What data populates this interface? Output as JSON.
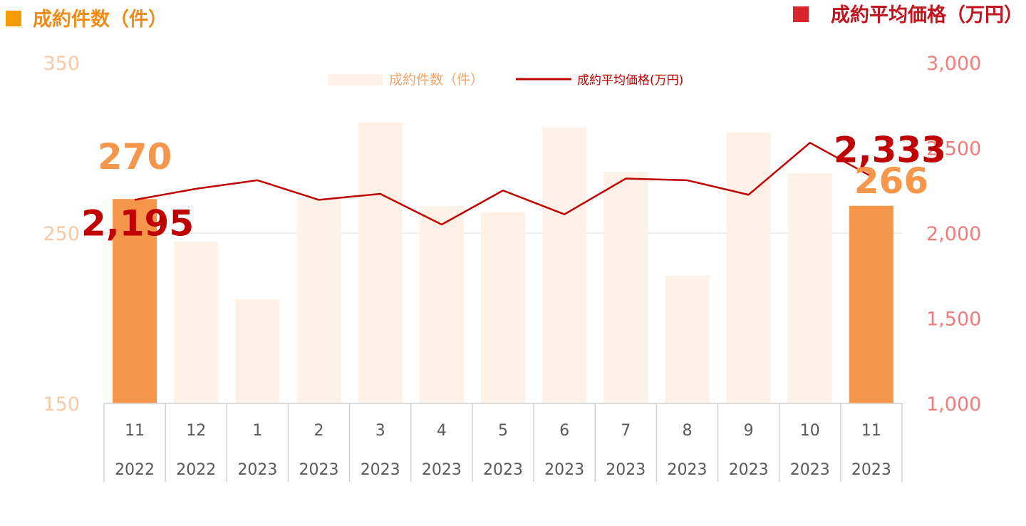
{
  "header": {
    "left_title": "成約件数（件）",
    "right_title": "成約平均価格（万円）"
  },
  "colors": {
    "bar_highlight": "#F5964A",
    "bar_faded": "#FDF1E8",
    "line": "#C00000",
    "left_axis_text": "#F8C9A4",
    "right_axis_text": "#F07C7C",
    "left_title_square": "#F59A00",
    "right_title_square": "#D9262E",
    "left_title_text": "#F08C16",
    "right_title_text": "#C0141E",
    "grid": "#DDDDDD",
    "category_text": "#595959",
    "legend_bar_text": "#F2A46A",
    "legend_line_text": "#C00000",
    "value_label_bar": "#F5964A",
    "value_label_line": "#C00000"
  },
  "chart_data": {
    "type": "bar",
    "categories": [
      {
        "month": "11",
        "year": "2022"
      },
      {
        "month": "12",
        "year": "2022"
      },
      {
        "month": "1",
        "year": "2023"
      },
      {
        "month": "2",
        "year": "2023"
      },
      {
        "month": "3",
        "year": "2023"
      },
      {
        "month": "4",
        "year": "2023"
      },
      {
        "month": "5",
        "year": "2023"
      },
      {
        "month": "6",
        "year": "2023"
      },
      {
        "month": "7",
        "year": "2023"
      },
      {
        "month": "8",
        "year": "2023"
      },
      {
        "month": "9",
        "year": "2023"
      },
      {
        "month": "10",
        "year": "2023"
      },
      {
        "month": "11",
        "year": "2023"
      }
    ],
    "series": [
      {
        "name": "成約件数（件）",
        "type": "bar",
        "axis": "left",
        "values": [
          270,
          245,
          211,
          270,
          315,
          266,
          262,
          312,
          286,
          225,
          309,
          285,
          266
        ],
        "highlight": [
          true,
          false,
          false,
          false,
          false,
          false,
          false,
          false,
          false,
          false,
          false,
          false,
          true
        ]
      },
      {
        "name": "成約平均価格(万円)",
        "type": "line",
        "axis": "right",
        "values": [
          2195,
          2260,
          2310,
          2195,
          2230,
          2050,
          2250,
          2110,
          2320,
          2310,
          2225,
          2530,
          2333
        ]
      }
    ],
    "y_left": {
      "min": 150,
      "max": 350,
      "ticks": [
        "150",
        "250",
        "350"
      ]
    },
    "y_right": {
      "min": 1000,
      "max": 3000,
      "ticks": [
        "1,000",
        "1,500",
        "2,000",
        "2,500",
        "3,000"
      ]
    },
    "legend": {
      "position": "top-center",
      "bar_label": "成約件数（件）",
      "line_label": "成約平均価格(万円)"
    },
    "annotations": [
      {
        "text": "270",
        "series": 0,
        "index": 0
      },
      {
        "text": "2,195",
        "series": 1,
        "index": 0
      },
      {
        "text": "2,333",
        "series": 1,
        "index": 12
      },
      {
        "text": "266",
        "series": 0,
        "index": 12
      }
    ],
    "grid": true
  }
}
